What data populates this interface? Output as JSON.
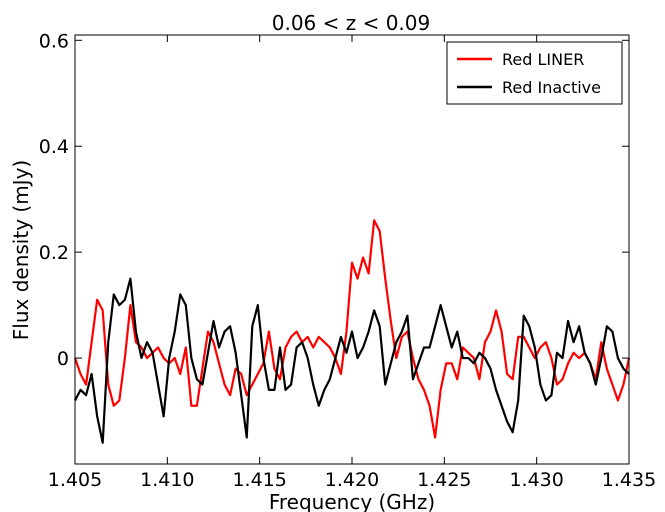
{
  "chart_data": {
    "type": "line",
    "title": "0.06 < z < 0.09",
    "xlabel": "Frequency (GHz)",
    "ylabel": "Flux density (mJy)",
    "xlim": [
      1.405,
      1.435
    ],
    "ylim": [
      -0.2,
      0.61
    ],
    "xticks": [
      1.405,
      1.41,
      1.415,
      1.42,
      1.425,
      1.43,
      1.435
    ],
    "xtick_labels": [
      "1.405",
      "1.410",
      "1.415",
      "1.420",
      "1.425",
      "1.430",
      "1.435"
    ],
    "yticks": [
      0.0,
      0.2,
      0.4,
      0.6
    ],
    "ytick_labels": [
      "0",
      "0.2",
      "0.4",
      "0.6"
    ],
    "grid": false,
    "legend_position": "top-right",
    "series": [
      {
        "name": "Red LINER",
        "color": "#ff0000",
        "x": [
          1.405,
          1.4053,
          1.4056,
          1.4059,
          1.4062,
          1.4065,
          1.4068,
          1.4071,
          1.4074,
          1.4077,
          1.408,
          1.4083,
          1.4086,
          1.4089,
          1.4092,
          1.4095,
          1.4098,
          1.4101,
          1.4104,
          1.4107,
          1.411,
          1.4113,
          1.4116,
          1.4119,
          1.4122,
          1.4125,
          1.4128,
          1.4131,
          1.4134,
          1.4137,
          1.414,
          1.4143,
          1.4146,
          1.4149,
          1.4152,
          1.4155,
          1.4158,
          1.4161,
          1.4164,
          1.4167,
          1.417,
          1.4173,
          1.4176,
          1.4179,
          1.4182,
          1.4185,
          1.4188,
          1.4191,
          1.4194,
          1.4197,
          1.42,
          1.4203,
          1.4206,
          1.4209,
          1.4212,
          1.4215,
          1.4218,
          1.4221,
          1.4224,
          1.4227,
          1.423,
          1.4233,
          1.4236,
          1.4239,
          1.4242,
          1.4245,
          1.4248,
          1.4251,
          1.4254,
          1.4257,
          1.426,
          1.4263,
          1.4266,
          1.4269,
          1.4272,
          1.4275,
          1.4278,
          1.4281,
          1.4284,
          1.4287,
          1.429,
          1.4293,
          1.4296,
          1.4299,
          1.4302,
          1.4305,
          1.4308,
          1.4311,
          1.4314,
          1.4317,
          1.432,
          1.4323,
          1.4326,
          1.4329,
          1.4332,
          1.4335,
          1.4338,
          1.4341,
          1.4344,
          1.4347,
          1.435
        ],
        "y": [
          0.0,
          -0.03,
          -0.05,
          0.03,
          0.11,
          0.09,
          -0.05,
          -0.09,
          -0.08,
          0.0,
          0.1,
          0.03,
          0.02,
          0.0,
          0.01,
          0.02,
          0.0,
          -0.01,
          0.0,
          -0.03,
          0.02,
          -0.09,
          -0.09,
          -0.02,
          0.05,
          0.03,
          -0.01,
          -0.05,
          -0.07,
          -0.02,
          -0.03,
          -0.07,
          -0.05,
          -0.03,
          -0.01,
          0.05,
          -0.02,
          -0.04,
          0.02,
          0.04,
          0.05,
          0.03,
          0.04,
          0.02,
          0.04,
          0.03,
          0.02,
          0.0,
          -0.03,
          0.05,
          0.18,
          0.15,
          0.19,
          0.16,
          0.26,
          0.24,
          0.15,
          0.07,
          0.0,
          0.04,
          0.05,
          0.0,
          -0.04,
          -0.06,
          -0.09,
          -0.15,
          -0.06,
          -0.01,
          -0.01,
          -0.04,
          0.02,
          0.01,
          0.0,
          -0.04,
          0.03,
          0.05,
          0.09,
          0.05,
          -0.03,
          -0.04,
          0.04,
          0.04,
          0.02,
          0.0,
          0.02,
          0.03,
          0.0,
          -0.05,
          -0.04,
          -0.01,
          0.01,
          0.0,
          0.01,
          -0.01,
          -0.04,
          0.03,
          -0.02,
          -0.05,
          -0.08,
          -0.05,
          0.0
        ]
      },
      {
        "name": "Red Inactive",
        "color": "#000000",
        "x": [
          1.405,
          1.4053,
          1.4056,
          1.4059,
          1.4062,
          1.4065,
          1.4068,
          1.4071,
          1.4074,
          1.4077,
          1.408,
          1.4083,
          1.4086,
          1.4089,
          1.4092,
          1.4095,
          1.4098,
          1.4101,
          1.4104,
          1.4107,
          1.411,
          1.4113,
          1.4116,
          1.4119,
          1.4122,
          1.4125,
          1.4128,
          1.4131,
          1.4134,
          1.4137,
          1.414,
          1.4143,
          1.4146,
          1.4149,
          1.4152,
          1.4155,
          1.4158,
          1.4161,
          1.4164,
          1.4167,
          1.417,
          1.4173,
          1.4176,
          1.4179,
          1.4182,
          1.4185,
          1.4188,
          1.4191,
          1.4194,
          1.4197,
          1.42,
          1.4203,
          1.4206,
          1.4209,
          1.4212,
          1.4215,
          1.4218,
          1.4221,
          1.4224,
          1.4227,
          1.423,
          1.4233,
          1.4236,
          1.4239,
          1.4242,
          1.4245,
          1.4248,
          1.4251,
          1.4254,
          1.4257,
          1.426,
          1.4263,
          1.4266,
          1.4269,
          1.4272,
          1.4275,
          1.4278,
          1.4281,
          1.4284,
          1.4287,
          1.429,
          1.4293,
          1.4296,
          1.4299,
          1.4302,
          1.4305,
          1.4308,
          1.4311,
          1.4314,
          1.4317,
          1.432,
          1.4323,
          1.4326,
          1.4329,
          1.4332,
          1.4335,
          1.4338,
          1.4341,
          1.4344,
          1.4347,
          1.435
        ],
        "y": [
          -0.08,
          -0.06,
          -0.07,
          -0.03,
          -0.11,
          -0.16,
          0.03,
          0.12,
          0.1,
          0.11,
          0.15,
          0.05,
          0.0,
          0.03,
          0.01,
          -0.05,
          -0.11,
          0.0,
          0.05,
          0.12,
          0.1,
          0.0,
          -0.04,
          -0.05,
          0.01,
          0.07,
          0.02,
          0.05,
          0.06,
          0.01,
          -0.07,
          -0.15,
          0.06,
          0.1,
          0.0,
          -0.06,
          -0.06,
          0.02,
          -0.06,
          -0.05,
          0.02,
          0.03,
          0.0,
          -0.05,
          -0.09,
          -0.06,
          -0.04,
          0.0,
          0.04,
          0.01,
          0.05,
          0.0,
          0.02,
          0.05,
          0.09,
          0.06,
          -0.05,
          -0.01,
          0.03,
          0.05,
          0.08,
          -0.04,
          -0.01,
          0.02,
          0.02,
          0.06,
          0.1,
          0.06,
          0.02,
          0.05,
          0.0,
          0.0,
          -0.01,
          0.01,
          0.0,
          -0.02,
          -0.06,
          -0.09,
          -0.12,
          -0.14,
          -0.08,
          0.08,
          0.06,
          0.02,
          -0.05,
          -0.08,
          -0.07,
          0.01,
          0.0,
          0.07,
          0.03,
          0.06,
          0.01,
          -0.01,
          -0.05,
          0.0,
          0.06,
          0.05,
          0.0,
          -0.02,
          -0.03
        ]
      }
    ]
  }
}
